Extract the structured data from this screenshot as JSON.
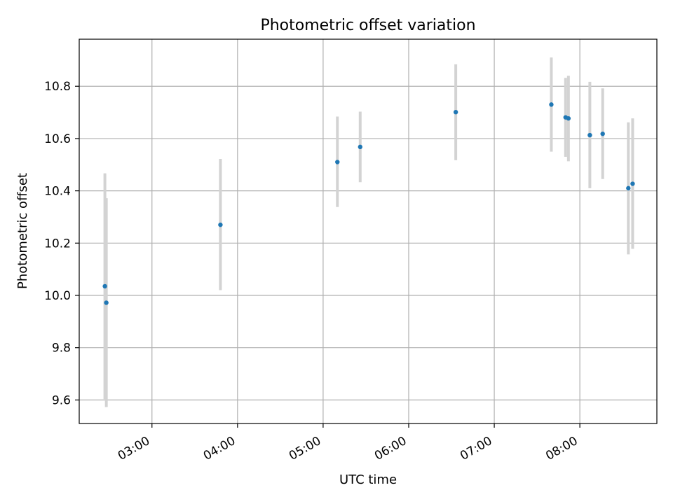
{
  "chart_data": {
    "type": "scatter",
    "title": "Photometric offset variation",
    "xlabel": "UTC time",
    "ylabel": "Photometric offset",
    "xlim": [
      "02:09",
      "08:54"
    ],
    "ylim": [
      9.51,
      10.98
    ],
    "xticks": [
      "03:00",
      "04:00",
      "05:00",
      "06:00",
      "07:00",
      "08:00"
    ],
    "yticks": [
      9.6,
      9.8,
      10.0,
      10.2,
      10.4,
      10.6,
      10.8
    ],
    "grid": true,
    "point_color": "#1f77b4",
    "errorbar_color": "#d3d3d3",
    "points": [
      {
        "time": "02:27",
        "value": 10.035,
        "err_low": 9.603,
        "err_high": 10.467
      },
      {
        "time": "02:28",
        "value": 9.972,
        "err_low": 9.573,
        "err_high": 10.372
      },
      {
        "time": "03:48",
        "value": 10.27,
        "err_low": 10.02,
        "err_high": 10.522
      },
      {
        "time": "05:10",
        "value": 10.51,
        "err_low": 10.338,
        "err_high": 10.684
      },
      {
        "time": "05:26",
        "value": 10.568,
        "err_low": 10.433,
        "err_high": 10.703
      },
      {
        "time": "06:33",
        "value": 10.701,
        "err_low": 10.517,
        "err_high": 10.884
      },
      {
        "time": "07:40",
        "value": 10.73,
        "err_low": 10.55,
        "err_high": 10.91
      },
      {
        "time": "07:50",
        "value": 10.681,
        "err_low": 10.53,
        "err_high": 10.832
      },
      {
        "time": "07:52",
        "value": 10.677,
        "err_low": 10.513,
        "err_high": 10.84
      },
      {
        "time": "08:07",
        "value": 10.613,
        "err_low": 10.41,
        "err_high": 10.817
      },
      {
        "time": "08:16",
        "value": 10.618,
        "err_low": 10.445,
        "err_high": 10.792
      },
      {
        "time": "08:34",
        "value": 10.41,
        "err_low": 10.157,
        "err_high": 10.662
      },
      {
        "time": "08:37",
        "value": 10.427,
        "err_low": 10.178,
        "err_high": 10.677
      }
    ]
  }
}
